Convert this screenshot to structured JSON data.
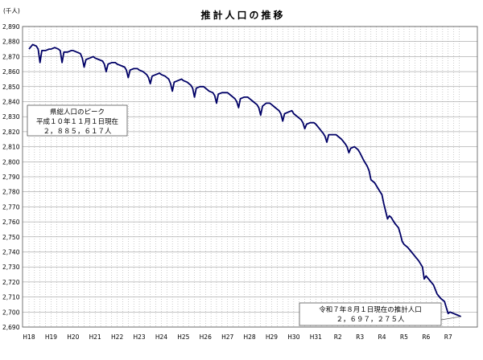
{
  "chart_data": {
    "type": "line",
    "title": "推計人口の推移",
    "unit_label": "(千人)",
    "ylim": [
      2690,
      2890
    ],
    "y_ticks": [
      2690,
      2700,
      2710,
      2720,
      2730,
      2740,
      2750,
      2760,
      2770,
      2780,
      2790,
      2800,
      2810,
      2820,
      2830,
      2840,
      2850,
      2860,
      2870,
      2880,
      2890
    ],
    "y_tick_labels": [
      "2,690",
      "2,700",
      "2,710",
      "2,720",
      "2,730",
      "2,740",
      "2,750",
      "2,760",
      "2,770",
      "2,780",
      "2,790",
      "2,800",
      "2,810",
      "2,820",
      "2,830",
      "2,840",
      "2,850",
      "2,860",
      "2,870",
      "2,880",
      "2,890"
    ],
    "x_range": [
      0,
      236
    ],
    "x_ticks": [
      {
        "label": "H18",
        "x": 0
      },
      {
        "label": "H19",
        "x": 12
      },
      {
        "label": "H20",
        "x": 24
      },
      {
        "label": "H21",
        "x": 36
      },
      {
        "label": "H22",
        "x": 48
      },
      {
        "label": "H23",
        "x": 60
      },
      {
        "label": "H24",
        "x": 72
      },
      {
        "label": "H25",
        "x": 84
      },
      {
        "label": "H26",
        "x": 96
      },
      {
        "label": "H27",
        "x": 108
      },
      {
        "label": "H28",
        "x": 120
      },
      {
        "label": "H29",
        "x": 132
      },
      {
        "label": "H30",
        "x": 144
      },
      {
        "label": "H31",
        "x": 156
      },
      {
        "label": "R2",
        "x": 168
      },
      {
        "label": "R3",
        "x": 180
      },
      {
        "label": "R4",
        "x": 192
      },
      {
        "label": "R5",
        "x": 204
      },
      {
        "label": "R6",
        "x": 216
      },
      {
        "label": "R7",
        "x": 228
      }
    ],
    "series": [
      {
        "color": "#000066",
        "points": [
          [
            0,
            2875
          ],
          [
            2,
            2878
          ],
          [
            4,
            2877
          ],
          [
            5,
            2875
          ],
          [
            6,
            2866
          ],
          [
            7,
            2874
          ],
          [
            9,
            2874
          ],
          [
            11,
            2875
          ],
          [
            12,
            2875
          ],
          [
            14,
            2876
          ],
          [
            16,
            2875
          ],
          [
            17,
            2874
          ],
          [
            18,
            2866
          ],
          [
            19,
            2873
          ],
          [
            21,
            2873
          ],
          [
            23,
            2874
          ],
          [
            24,
            2874
          ],
          [
            26,
            2873
          ],
          [
            28,
            2872
          ],
          [
            29,
            2869
          ],
          [
            30,
            2863
          ],
          [
            31,
            2868
          ],
          [
            33,
            2869
          ],
          [
            35,
            2870
          ],
          [
            36,
            2869
          ],
          [
            38,
            2868
          ],
          [
            40,
            2867
          ],
          [
            41,
            2865
          ],
          [
            42,
            2860
          ],
          [
            43,
            2865
          ],
          [
            45,
            2866
          ],
          [
            47,
            2866
          ],
          [
            48,
            2865
          ],
          [
            50,
            2864
          ],
          [
            52,
            2863
          ],
          [
            53,
            2861
          ],
          [
            54,
            2856
          ],
          [
            55,
            2861
          ],
          [
            57,
            2862
          ],
          [
            59,
            2862
          ],
          [
            60,
            2861
          ],
          [
            62,
            2860
          ],
          [
            64,
            2858
          ],
          [
            65,
            2856
          ],
          [
            66,
            2852
          ],
          [
            67,
            2857
          ],
          [
            69,
            2858
          ],
          [
            71,
            2859
          ],
          [
            72,
            2858
          ],
          [
            74,
            2857
          ],
          [
            76,
            2855
          ],
          [
            77,
            2852
          ],
          [
            78,
            2847
          ],
          [
            79,
            2853
          ],
          [
            81,
            2854
          ],
          [
            83,
            2855
          ],
          [
            84,
            2854
          ],
          [
            86,
            2853
          ],
          [
            88,
            2851
          ],
          [
            89,
            2849
          ],
          [
            90,
            2843
          ],
          [
            91,
            2849
          ],
          [
            93,
            2850
          ],
          [
            95,
            2850
          ],
          [
            96,
            2849
          ],
          [
            98,
            2847
          ],
          [
            100,
            2846
          ],
          [
            101,
            2844
          ],
          [
            102,
            2839
          ],
          [
            103,
            2845
          ],
          [
            105,
            2846
          ],
          [
            107,
            2846
          ],
          [
            108,
            2846
          ],
          [
            110,
            2844
          ],
          [
            112,
            2842
          ],
          [
            113,
            2840
          ],
          [
            114,
            2836
          ],
          [
            115,
            2842
          ],
          [
            117,
            2843
          ],
          [
            119,
            2843
          ],
          [
            120,
            2842
          ],
          [
            122,
            2840
          ],
          [
            124,
            2838
          ],
          [
            125,
            2836
          ],
          [
            126,
            2831
          ],
          [
            127,
            2837
          ],
          [
            129,
            2839
          ],
          [
            131,
            2839
          ],
          [
            132,
            2838
          ],
          [
            134,
            2836
          ],
          [
            136,
            2834
          ],
          [
            137,
            2832
          ],
          [
            138,
            2827
          ],
          [
            139,
            2832
          ],
          [
            141,
            2833
          ],
          [
            143,
            2834
          ],
          [
            144,
            2832
          ],
          [
            146,
            2830
          ],
          [
            148,
            2828
          ],
          [
            149,
            2826
          ],
          [
            150,
            2822
          ],
          [
            151,
            2825
          ],
          [
            153,
            2826
          ],
          [
            155,
            2826
          ],
          [
            156,
            2825
          ],
          [
            158,
            2822
          ],
          [
            160,
            2819
          ],
          [
            161,
            2817
          ],
          [
            162,
            2813
          ],
          [
            163,
            2818
          ],
          [
            165,
            2818
          ],
          [
            167,
            2818
          ],
          [
            168,
            2817
          ],
          [
            170,
            2815
          ],
          [
            172,
            2812
          ],
          [
            173,
            2810
          ],
          [
            174,
            2806
          ],
          [
            175,
            2809
          ],
          [
            177,
            2810
          ],
          [
            179,
            2808
          ],
          [
            180,
            2806
          ],
          [
            182,
            2801
          ],
          [
            184,
            2797
          ],
          [
            185,
            2794
          ],
          [
            186,
            2788
          ],
          [
            188,
            2786
          ],
          [
            190,
            2782
          ],
          [
            192,
            2778
          ],
          [
            193,
            2772
          ],
          [
            194,
            2767
          ],
          [
            195,
            2762
          ],
          [
            196,
            2764
          ],
          [
            197,
            2763
          ],
          [
            199,
            2759
          ],
          [
            201,
            2756
          ],
          [
            202,
            2752
          ],
          [
            203,
            2747
          ],
          [
            204,
            2745
          ],
          [
            206,
            2743
          ],
          [
            208,
            2740
          ],
          [
            210,
            2737
          ],
          [
            212,
            2734
          ],
          [
            214,
            2730
          ],
          [
            215,
            2722
          ],
          [
            216,
            2724
          ],
          [
            218,
            2721
          ],
          [
            220,
            2718
          ],
          [
            222,
            2712
          ],
          [
            224,
            2709
          ],
          [
            226,
            2707
          ],
          [
            227,
            2703
          ],
          [
            228,
            2699
          ],
          [
            229,
            2700
          ],
          [
            231,
            2699
          ],
          [
            233,
            2698
          ],
          [
            235,
            2697
          ]
        ]
      }
    ],
    "annotations": [
      {
        "lines": [
          "県総人口のピーク",
          "平成１０年１１月１日現在",
          "２，８８５，６１７人"
        ]
      },
      {
        "lines": [
          "令和７年８月１日現在の推計人口",
          "２，６９７，２７５人"
        ]
      }
    ],
    "grid": true
  }
}
